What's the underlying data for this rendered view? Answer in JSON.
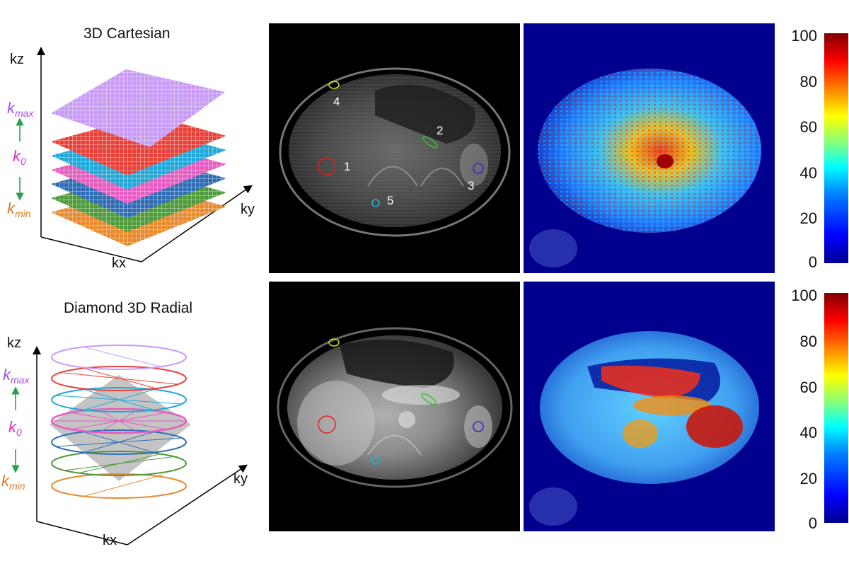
{
  "top_row": {
    "diagram_title": "3D Cartesian",
    "axis_kz": "kz",
    "axis_kx": "kx",
    "axis_ky": "ky",
    "k_max": "k",
    "k_max_sub": "max",
    "k_0": "k",
    "k_0_sub": "0",
    "k_min": "k",
    "k_min_sub": "min",
    "roi_labels": [
      "1",
      "2",
      "3",
      "4",
      "5"
    ]
  },
  "bottom_row": {
    "diagram_title": "Diamond 3D Radial",
    "axis_kz": "kz",
    "axis_kx": "kx",
    "axis_ky": "ky",
    "k_max": "k",
    "k_max_sub": "max",
    "k_0": "k",
    "k_0_sub": "0",
    "k_min": "k",
    "k_min_sub": "min"
  },
  "colorbar": {
    "ticks": [
      "100",
      "80",
      "60",
      "40",
      "20",
      "0"
    ],
    "colors": [
      "#00008f",
      "#0000ff",
      "#00ffff",
      "#ffff00",
      "#ff0000",
      "#800000"
    ]
  },
  "layer_colors": {
    "kmax": "#b266ff",
    "red": "#e8413a",
    "cyan": "#1fa8d9",
    "pink": "#e65cc0",
    "blue": "#2e6db4",
    "green": "#4f9a3a",
    "orange": "#e88a2e"
  },
  "roi_colors": {
    "roi1": "#e02020",
    "roi2": "#33c233",
    "roi3": "#2828d8",
    "roi4": "#d8d820",
    "roi5": "#20b8c8"
  }
}
